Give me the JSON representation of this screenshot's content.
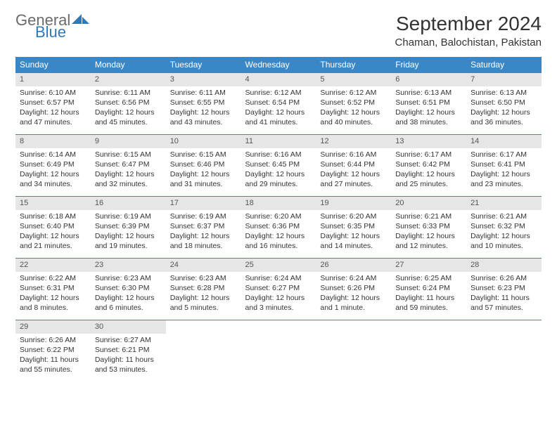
{
  "logo": {
    "text1": "General",
    "text2": "Blue"
  },
  "title": "September 2024",
  "location": "Chaman, Balochistan, Pakistan",
  "colors": {
    "header_bg": "#3a87c8",
    "header_text": "#ffffff",
    "daynum_bg": "#e6e6e6",
    "rule": "#3a87c8",
    "logo_gray": "#6a6a6a",
    "logo_blue": "#2f78b8"
  },
  "weekdays": [
    "Sunday",
    "Monday",
    "Tuesday",
    "Wednesday",
    "Thursday",
    "Friday",
    "Saturday"
  ],
  "weeks": [
    [
      {
        "n": "1",
        "sr": "Sunrise: 6:10 AM",
        "ss": "Sunset: 6:57 PM",
        "dl": "Daylight: 12 hours and 47 minutes."
      },
      {
        "n": "2",
        "sr": "Sunrise: 6:11 AM",
        "ss": "Sunset: 6:56 PM",
        "dl": "Daylight: 12 hours and 45 minutes."
      },
      {
        "n": "3",
        "sr": "Sunrise: 6:11 AM",
        "ss": "Sunset: 6:55 PM",
        "dl": "Daylight: 12 hours and 43 minutes."
      },
      {
        "n": "4",
        "sr": "Sunrise: 6:12 AM",
        "ss": "Sunset: 6:54 PM",
        "dl": "Daylight: 12 hours and 41 minutes."
      },
      {
        "n": "5",
        "sr": "Sunrise: 6:12 AM",
        "ss": "Sunset: 6:52 PM",
        "dl": "Daylight: 12 hours and 40 minutes."
      },
      {
        "n": "6",
        "sr": "Sunrise: 6:13 AM",
        "ss": "Sunset: 6:51 PM",
        "dl": "Daylight: 12 hours and 38 minutes."
      },
      {
        "n": "7",
        "sr": "Sunrise: 6:13 AM",
        "ss": "Sunset: 6:50 PM",
        "dl": "Daylight: 12 hours and 36 minutes."
      }
    ],
    [
      {
        "n": "8",
        "sr": "Sunrise: 6:14 AM",
        "ss": "Sunset: 6:49 PM",
        "dl": "Daylight: 12 hours and 34 minutes."
      },
      {
        "n": "9",
        "sr": "Sunrise: 6:15 AM",
        "ss": "Sunset: 6:47 PM",
        "dl": "Daylight: 12 hours and 32 minutes."
      },
      {
        "n": "10",
        "sr": "Sunrise: 6:15 AM",
        "ss": "Sunset: 6:46 PM",
        "dl": "Daylight: 12 hours and 31 minutes."
      },
      {
        "n": "11",
        "sr": "Sunrise: 6:16 AM",
        "ss": "Sunset: 6:45 PM",
        "dl": "Daylight: 12 hours and 29 minutes."
      },
      {
        "n": "12",
        "sr": "Sunrise: 6:16 AM",
        "ss": "Sunset: 6:44 PM",
        "dl": "Daylight: 12 hours and 27 minutes."
      },
      {
        "n": "13",
        "sr": "Sunrise: 6:17 AM",
        "ss": "Sunset: 6:42 PM",
        "dl": "Daylight: 12 hours and 25 minutes."
      },
      {
        "n": "14",
        "sr": "Sunrise: 6:17 AM",
        "ss": "Sunset: 6:41 PM",
        "dl": "Daylight: 12 hours and 23 minutes."
      }
    ],
    [
      {
        "n": "15",
        "sr": "Sunrise: 6:18 AM",
        "ss": "Sunset: 6:40 PM",
        "dl": "Daylight: 12 hours and 21 minutes."
      },
      {
        "n": "16",
        "sr": "Sunrise: 6:19 AM",
        "ss": "Sunset: 6:39 PM",
        "dl": "Daylight: 12 hours and 19 minutes."
      },
      {
        "n": "17",
        "sr": "Sunrise: 6:19 AM",
        "ss": "Sunset: 6:37 PM",
        "dl": "Daylight: 12 hours and 18 minutes."
      },
      {
        "n": "18",
        "sr": "Sunrise: 6:20 AM",
        "ss": "Sunset: 6:36 PM",
        "dl": "Daylight: 12 hours and 16 minutes."
      },
      {
        "n": "19",
        "sr": "Sunrise: 6:20 AM",
        "ss": "Sunset: 6:35 PM",
        "dl": "Daylight: 12 hours and 14 minutes."
      },
      {
        "n": "20",
        "sr": "Sunrise: 6:21 AM",
        "ss": "Sunset: 6:33 PM",
        "dl": "Daylight: 12 hours and 12 minutes."
      },
      {
        "n": "21",
        "sr": "Sunrise: 6:21 AM",
        "ss": "Sunset: 6:32 PM",
        "dl": "Daylight: 12 hours and 10 minutes."
      }
    ],
    [
      {
        "n": "22",
        "sr": "Sunrise: 6:22 AM",
        "ss": "Sunset: 6:31 PM",
        "dl": "Daylight: 12 hours and 8 minutes."
      },
      {
        "n": "23",
        "sr": "Sunrise: 6:23 AM",
        "ss": "Sunset: 6:30 PM",
        "dl": "Daylight: 12 hours and 6 minutes."
      },
      {
        "n": "24",
        "sr": "Sunrise: 6:23 AM",
        "ss": "Sunset: 6:28 PM",
        "dl": "Daylight: 12 hours and 5 minutes."
      },
      {
        "n": "25",
        "sr": "Sunrise: 6:24 AM",
        "ss": "Sunset: 6:27 PM",
        "dl": "Daylight: 12 hours and 3 minutes."
      },
      {
        "n": "26",
        "sr": "Sunrise: 6:24 AM",
        "ss": "Sunset: 6:26 PM",
        "dl": "Daylight: 12 hours and 1 minute."
      },
      {
        "n": "27",
        "sr": "Sunrise: 6:25 AM",
        "ss": "Sunset: 6:24 PM",
        "dl": "Daylight: 11 hours and 59 minutes."
      },
      {
        "n": "28",
        "sr": "Sunrise: 6:26 AM",
        "ss": "Sunset: 6:23 PM",
        "dl": "Daylight: 11 hours and 57 minutes."
      }
    ],
    [
      {
        "n": "29",
        "sr": "Sunrise: 6:26 AM",
        "ss": "Sunset: 6:22 PM",
        "dl": "Daylight: 11 hours and 55 minutes."
      },
      {
        "n": "30",
        "sr": "Sunrise: 6:27 AM",
        "ss": "Sunset: 6:21 PM",
        "dl": "Daylight: 11 hours and 53 minutes."
      },
      null,
      null,
      null,
      null,
      null
    ]
  ]
}
